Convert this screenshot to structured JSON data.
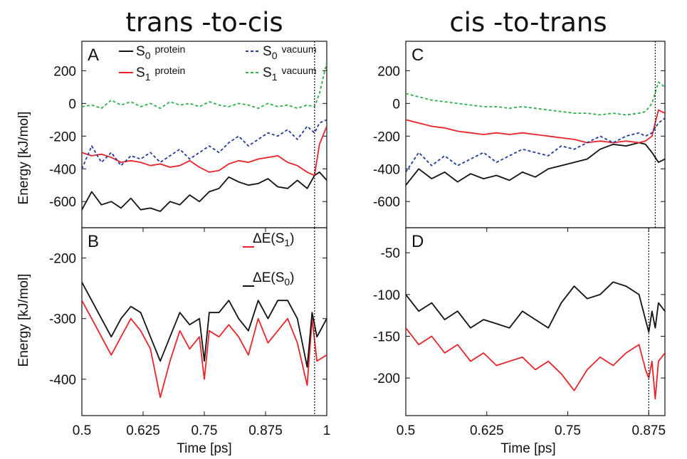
{
  "chart_data": [
    {
      "panel": "A",
      "type": "line",
      "column_title": "trans -to-cis",
      "ylabel": "Energy [kJ/mol]",
      "xlim": [
        0.5,
        1.0
      ],
      "ylim": [
        -760,
        380
      ],
      "yticks": [
        "200",
        "0",
        "-200",
        "-400",
        "-600"
      ],
      "yticks_values": [
        200,
        0,
        -200,
        -400,
        -600
      ],
      "grid": false,
      "legend_placement": "top",
      "vline_x": 0.975,
      "series": [
        {
          "name": "S0 protein",
          "label_main": "S",
          "label_sub": "0",
          "label_suffix": "protein",
          "color": "#111111",
          "dash": "solid",
          "x": [
            0.5,
            0.52,
            0.54,
            0.56,
            0.58,
            0.6,
            0.62,
            0.64,
            0.66,
            0.68,
            0.7,
            0.72,
            0.74,
            0.76,
            0.78,
            0.8,
            0.82,
            0.84,
            0.86,
            0.88,
            0.9,
            0.92,
            0.94,
            0.96,
            0.975,
            0.985,
            1.0
          ],
          "y": [
            -650,
            -540,
            -620,
            -600,
            -640,
            -580,
            -650,
            -640,
            -660,
            -600,
            -620,
            -560,
            -600,
            -540,
            -520,
            -450,
            -480,
            -500,
            -490,
            -460,
            -510,
            -520,
            -470,
            -520,
            -440,
            -420,
            -470
          ]
        },
        {
          "name": "S1 protein",
          "label_main": "S",
          "label_sub": "1",
          "label_suffix": "protein",
          "color": "#e8232a",
          "dash": "solid",
          "x": [
            0.5,
            0.52,
            0.54,
            0.56,
            0.58,
            0.6,
            0.62,
            0.64,
            0.66,
            0.68,
            0.7,
            0.72,
            0.74,
            0.76,
            0.78,
            0.8,
            0.82,
            0.84,
            0.86,
            0.88,
            0.9,
            0.92,
            0.94,
            0.96,
            0.975,
            0.985,
            1.0
          ],
          "y": [
            -300,
            -320,
            -310,
            -330,
            -360,
            -350,
            -360,
            -380,
            -370,
            -390,
            -380,
            -350,
            -390,
            -420,
            -410,
            -370,
            -350,
            -360,
            -340,
            -330,
            -320,
            -360,
            -380,
            -420,
            -440,
            -250,
            -140
          ]
        },
        {
          "name": "S0 vacuum",
          "label_main": "S",
          "label_sub": "0",
          "label_suffix": "vacuum",
          "color": "#1f3a9a",
          "dash": "4,3",
          "x": [
            0.5,
            0.52,
            0.54,
            0.56,
            0.58,
            0.6,
            0.62,
            0.64,
            0.66,
            0.68,
            0.7,
            0.72,
            0.74,
            0.76,
            0.78,
            0.8,
            0.82,
            0.84,
            0.86,
            0.88,
            0.9,
            0.92,
            0.94,
            0.96,
            0.975,
            0.985,
            1.0
          ],
          "y": [
            -400,
            -260,
            -360,
            -300,
            -380,
            -320,
            -340,
            -300,
            -360,
            -320,
            -280,
            -340,
            -300,
            -260,
            -300,
            -240,
            -200,
            -260,
            -220,
            -180,
            -200,
            -160,
            -220,
            -140,
            -180,
            -120,
            -100
          ]
        },
        {
          "name": "S1 vacuum",
          "label_main": "S",
          "label_sub": "1",
          "label_suffix": "vacuum",
          "color": "#2fb04a",
          "dash": "4,3",
          "x": [
            0.5,
            0.52,
            0.54,
            0.56,
            0.58,
            0.6,
            0.62,
            0.64,
            0.66,
            0.68,
            0.7,
            0.72,
            0.74,
            0.76,
            0.78,
            0.8,
            0.82,
            0.84,
            0.86,
            0.88,
            0.9,
            0.92,
            0.94,
            0.96,
            0.975,
            0.985,
            1.0
          ],
          "y": [
            -20,
            -10,
            -30,
            20,
            -10,
            10,
            -20,
            0,
            -30,
            10,
            -10,
            0,
            -20,
            10,
            -10,
            -20,
            0,
            -10,
            -30,
            0,
            -20,
            -10,
            -30,
            -10,
            -20,
            60,
            250
          ]
        }
      ]
    },
    {
      "panel": "B",
      "type": "line",
      "ylabel": "Energy [kJ/mol]",
      "xlabel": "Time [ps]",
      "xlim": [
        0.5,
        1.0
      ],
      "ylim": [
        -460,
        -150
      ],
      "xticks": [
        "0.5",
        "0.625",
        "0.75",
        "0.875",
        "1"
      ],
      "xticks_values": [
        0.5,
        0.625,
        0.75,
        0.875,
        1.0
      ],
      "yticks": [
        "-200",
        "-300",
        "-400"
      ],
      "yticks_values": [
        -200,
        -300,
        -400
      ],
      "grid": false,
      "legend_placement": "top-right",
      "vline_x": 0.975,
      "series": [
        {
          "name": "ΔE(S1)",
          "label_main": "ΔE(S",
          "label_sub": "1",
          "label_close": ")",
          "color": "#e8232a",
          "x": [
            0.5,
            0.52,
            0.54,
            0.56,
            0.58,
            0.6,
            0.62,
            0.64,
            0.66,
            0.68,
            0.7,
            0.72,
            0.74,
            0.75,
            0.76,
            0.78,
            0.8,
            0.82,
            0.84,
            0.86,
            0.88,
            0.9,
            0.92,
            0.94,
            0.96,
            0.97,
            0.98,
            1.0
          ],
          "y": [
            -270,
            -300,
            -330,
            -360,
            -330,
            -300,
            -320,
            -350,
            -430,
            -370,
            -320,
            -350,
            -330,
            -400,
            -320,
            -330,
            -310,
            -330,
            -360,
            -300,
            -340,
            -320,
            -300,
            -340,
            -410,
            -300,
            -370,
            -360
          ]
        },
        {
          "name": "ΔE(S0)",
          "label_main": "ΔE(S",
          "label_sub": "0",
          "label_close": ")",
          "color": "#111111",
          "x": [
            0.5,
            0.52,
            0.54,
            0.56,
            0.58,
            0.6,
            0.62,
            0.64,
            0.66,
            0.68,
            0.7,
            0.72,
            0.74,
            0.75,
            0.76,
            0.78,
            0.8,
            0.82,
            0.84,
            0.86,
            0.88,
            0.9,
            0.92,
            0.94,
            0.96,
            0.97,
            0.98,
            1.0
          ],
          "y": [
            -240,
            -270,
            -300,
            -330,
            -300,
            -280,
            -290,
            -330,
            -370,
            -330,
            -290,
            -310,
            -300,
            -370,
            -290,
            -290,
            -270,
            -300,
            -320,
            -270,
            -300,
            -270,
            -270,
            -300,
            -380,
            -290,
            -330,
            -300
          ]
        }
      ]
    },
    {
      "panel": "C",
      "type": "line",
      "column_title": "cis -to-trans",
      "xlim": [
        0.5,
        0.9
      ],
      "ylim": [
        -760,
        380
      ],
      "yticks": [
        "200",
        "0",
        "-200",
        "-400",
        "-600"
      ],
      "yticks_values": [
        200,
        0,
        -200,
        -400,
        -600
      ],
      "grid": false,
      "vline_x": 0.885,
      "series": [
        {
          "name": "S0 protein",
          "color": "#111111",
          "dash": "solid",
          "x": [
            0.5,
            0.52,
            0.54,
            0.56,
            0.58,
            0.6,
            0.62,
            0.64,
            0.66,
            0.68,
            0.7,
            0.72,
            0.74,
            0.76,
            0.78,
            0.8,
            0.82,
            0.84,
            0.86,
            0.87,
            0.88,
            0.89,
            0.9
          ],
          "y": [
            -500,
            -400,
            -460,
            -420,
            -480,
            -430,
            -460,
            -440,
            -470,
            -420,
            -450,
            -400,
            -380,
            -360,
            -340,
            -280,
            -250,
            -260,
            -240,
            -250,
            -300,
            -360,
            -340
          ]
        },
        {
          "name": "S1 protein",
          "color": "#e8232a",
          "dash": "solid",
          "x": [
            0.5,
            0.52,
            0.54,
            0.56,
            0.58,
            0.6,
            0.62,
            0.64,
            0.66,
            0.68,
            0.7,
            0.72,
            0.74,
            0.76,
            0.78,
            0.8,
            0.82,
            0.84,
            0.86,
            0.87,
            0.88,
            0.89,
            0.9
          ],
          "y": [
            -100,
            -120,
            -140,
            -150,
            -170,
            -180,
            -190,
            -180,
            -190,
            -180,
            -190,
            -200,
            -210,
            -220,
            -240,
            -230,
            -240,
            -230,
            -240,
            -230,
            -200,
            -40,
            -60
          ]
        },
        {
          "name": "S0 vacuum",
          "color": "#1f3a9a",
          "dash": "4,3",
          "x": [
            0.5,
            0.52,
            0.54,
            0.56,
            0.58,
            0.6,
            0.62,
            0.64,
            0.66,
            0.68,
            0.7,
            0.72,
            0.74,
            0.76,
            0.78,
            0.8,
            0.82,
            0.84,
            0.86,
            0.87,
            0.88,
            0.89,
            0.9
          ],
          "y": [
            -420,
            -300,
            -380,
            -320,
            -380,
            -340,
            -300,
            -360,
            -320,
            -280,
            -300,
            -320,
            -260,
            -280,
            -240,
            -200,
            -240,
            -200,
            -180,
            -200,
            -180,
            -120,
            -90
          ]
        },
        {
          "name": "S1 vacuum",
          "color": "#2fb04a",
          "dash": "4,3",
          "x": [
            0.5,
            0.52,
            0.54,
            0.56,
            0.58,
            0.6,
            0.62,
            0.64,
            0.66,
            0.68,
            0.7,
            0.72,
            0.74,
            0.76,
            0.78,
            0.8,
            0.82,
            0.84,
            0.86,
            0.87,
            0.88,
            0.89,
            0.9
          ],
          "y": [
            60,
            40,
            20,
            10,
            0,
            -10,
            -20,
            -20,
            -30,
            -20,
            -30,
            -40,
            -50,
            -60,
            -60,
            -70,
            -60,
            -70,
            -60,
            -50,
            0,
            130,
            100
          ]
        }
      ]
    },
    {
      "panel": "D",
      "type": "line",
      "xlabel": "Time [ps]",
      "xlim": [
        0.5,
        0.9
      ],
      "ylim": [
        -245,
        -20
      ],
      "xticks": [
        "0.5",
        "0.625",
        "0.75",
        "0.875"
      ],
      "xticks_values": [
        0.5,
        0.625,
        0.75,
        0.875
      ],
      "yticks": [
        "-50",
        "-100",
        "-150",
        "-200"
      ],
      "yticks_values": [
        -50,
        -100,
        -150,
        -200
      ],
      "grid": false,
      "vline_x": 0.875,
      "series": [
        {
          "name": "ΔE(S1)",
          "color": "#e8232a",
          "x": [
            0.5,
            0.52,
            0.54,
            0.56,
            0.58,
            0.6,
            0.62,
            0.64,
            0.66,
            0.68,
            0.7,
            0.72,
            0.74,
            0.76,
            0.78,
            0.8,
            0.82,
            0.84,
            0.86,
            0.87,
            0.875,
            0.88,
            0.885,
            0.89,
            0.9
          ],
          "y": [
            -140,
            -160,
            -150,
            -170,
            -160,
            -180,
            -170,
            -185,
            -180,
            -175,
            -190,
            -180,
            -195,
            -215,
            -190,
            -175,
            -185,
            -170,
            -160,
            -190,
            -200,
            -180,
            -225,
            -180,
            -170
          ]
        },
        {
          "name": "ΔE(S0)",
          "color": "#111111",
          "x": [
            0.5,
            0.52,
            0.54,
            0.56,
            0.58,
            0.6,
            0.62,
            0.64,
            0.66,
            0.68,
            0.7,
            0.72,
            0.74,
            0.76,
            0.78,
            0.8,
            0.82,
            0.84,
            0.86,
            0.87,
            0.875,
            0.88,
            0.885,
            0.89,
            0.9
          ],
          "y": [
            -100,
            -120,
            -110,
            -130,
            -120,
            -140,
            -130,
            -135,
            -140,
            -120,
            -130,
            -140,
            -110,
            -90,
            -105,
            -100,
            -85,
            -90,
            -100,
            -130,
            -145,
            -120,
            -140,
            -110,
            -120
          ]
        }
      ]
    }
  ]
}
